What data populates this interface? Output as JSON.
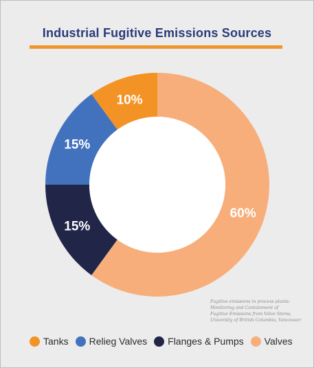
{
  "chart_data": {
    "type": "pie",
    "title": "Industrial Fugitive Emissions Sources",
    "categories": [
      "Tanks",
      "Relieg Valves",
      "Flanges & Pumps",
      "Valves"
    ],
    "values": [
      10,
      15,
      15,
      60
    ],
    "value_labels": [
      "10%",
      "15%",
      "15%",
      "60%"
    ],
    "colors": [
      "#f39325",
      "#4272bd",
      "#212649",
      "#f7ae7b"
    ],
    "donut": true,
    "legend_position": "bottom",
    "source_lines": [
      "Fugitive emissions in process plants:",
      "Monitoring and Containment of",
      "Fugitive Emissions from Valve Stems,",
      "University of British Columbia, Vancouver"
    ]
  }
}
